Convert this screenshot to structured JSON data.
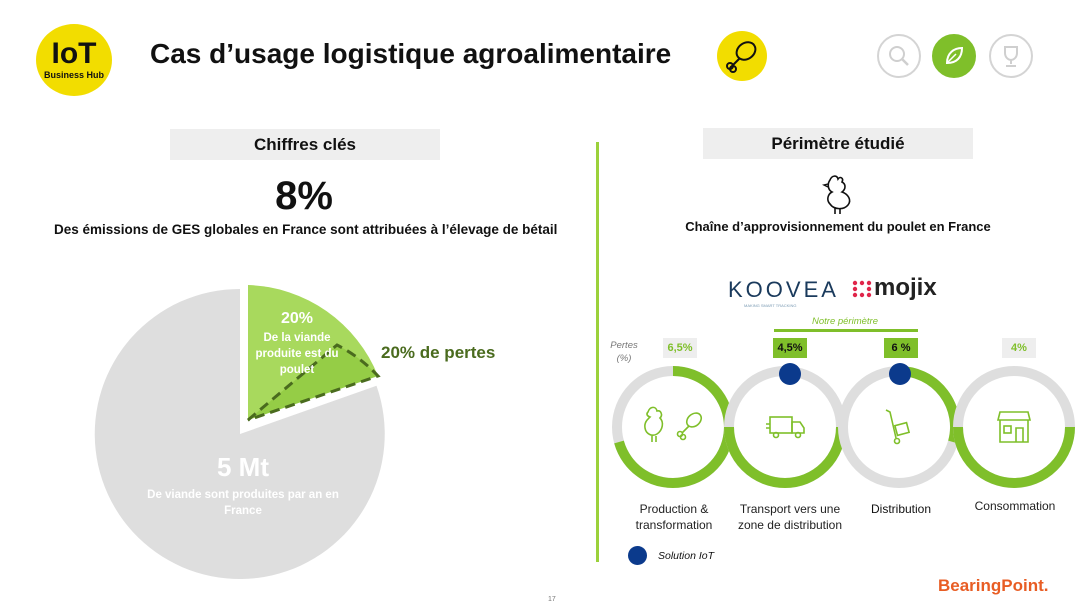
{
  "logo": {
    "line1": "IoT",
    "line2": "Business Hub"
  },
  "page_title": "Cas d’usage logistique agroalimentaire",
  "icons": {
    "header": "drumstick-icon",
    "nav": [
      "magnifier-icon",
      "leaf-icon",
      "trophy-icon"
    ]
  },
  "left": {
    "header": "Chiffres clés",
    "big_value": "8%",
    "big_caption": "Des émissions de GES globales en France sont attribuées à l’élevage de bétail",
    "pie": {
      "slice_pct": "20%",
      "slice_text": "De la viande produite est du poulet",
      "main_value": "5 Mt",
      "main_text": "De viande sont produites par an en France",
      "loss_label": "20% de pertes"
    }
  },
  "right": {
    "header": "Périmètre étudié",
    "chain_title": "Chaîne d’approvisionnement du poulet en France",
    "partners": [
      "KOOVEA",
      "mojix"
    ],
    "partner_sub": "MAKING SMART TRACKING",
    "perimeter_label": "Notre périmètre",
    "losses_label": "Pertes (%)",
    "stages": [
      {
        "pct": "6,5%",
        "label": "Production & transformation"
      },
      {
        "pct": "4,5%",
        "label": "Transport vers une zone de distribution"
      },
      {
        "pct": "6 %",
        "label": "Distribution"
      },
      {
        "pct": "4%",
        "label": "Consommation"
      }
    ],
    "legend": "Solution IoT"
  },
  "footer": {
    "brand": "BearingPoint.",
    "page": "17"
  },
  "colors": {
    "green": "#7fbf2a",
    "lightgreen": "#a8d95d",
    "grey": "#dedede",
    "yellow": "#f2dd00",
    "blue": "#0b3a8c",
    "orange": "#e85d24"
  }
}
